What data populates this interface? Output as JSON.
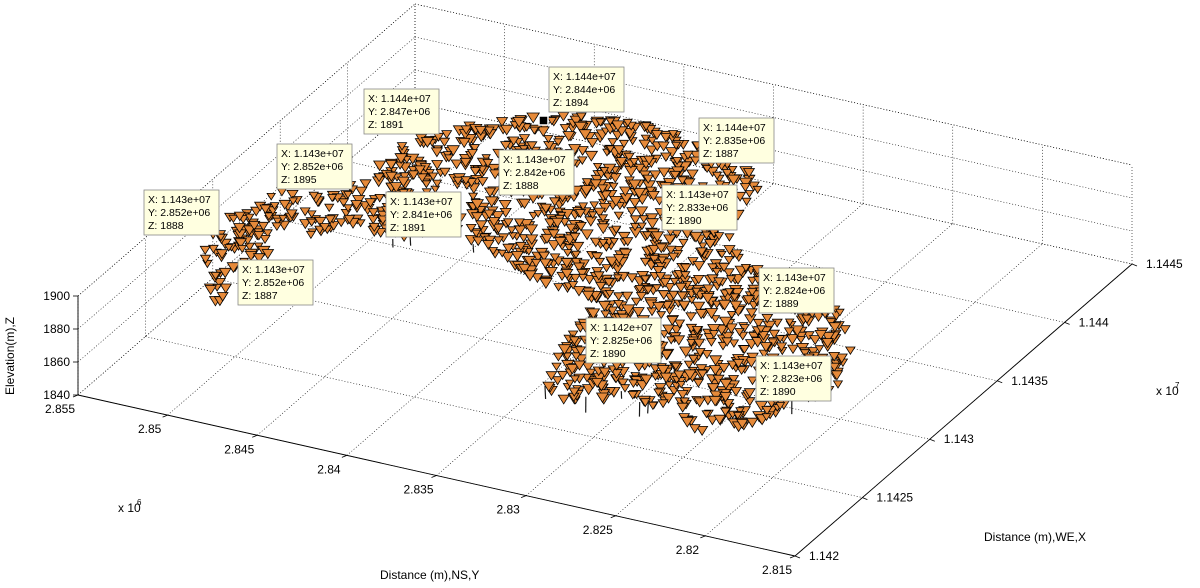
{
  "chart_data": {
    "type": "scatter",
    "projection": "3d",
    "marker": "downward-triangle",
    "marker_color": "#e68a3a",
    "marker_edge_color": "#000000",
    "grid": true,
    "xlabel": "Distance (m),WE,X",
    "ylabel": "Distance (m),NS,Y",
    "zlabel": "Elevation(m),Z",
    "x_ticks": [
      "1.142",
      "1.1425",
      "1.143",
      "1.1435",
      "1.144",
      "1.1445"
    ],
    "x_exponent": "x 10",
    "x_exponent_power": "7",
    "y_ticks": [
      "2.855",
      "2.85",
      "2.845",
      "2.84",
      "2.835",
      "2.83",
      "2.825",
      "2.82",
      "2.815"
    ],
    "y_exponent": "x 10",
    "y_exponent_power": "6",
    "z_ticks": [
      "1840",
      "1860",
      "1880",
      "1900"
    ],
    "xlim": [
      11420000,
      11445000
    ],
    "ylim": [
      2815000,
      2855000
    ],
    "zlim": [
      1840,
      1900
    ],
    "datatips": [
      {
        "x": "X: 1.143e+07",
        "y": "Y: 2.852e+06",
        "z": "Z: 1888"
      },
      {
        "x": "X: 1.143e+07",
        "y": "Y: 2.852e+06",
        "z": "Z: 1895"
      },
      {
        "x": "X: 1.144e+07",
        "y": "Y: 2.847e+06",
        "z": "Z: 1891"
      },
      {
        "x": "X: 1.144e+07",
        "y": "Y: 2.844e+06",
        "z": "Z: 1894"
      },
      {
        "x": "X: 1.144e+07",
        "y": "Y: 2.835e+06",
        "z": "Z: 1887"
      },
      {
        "x": "X: 1.143e+07",
        "y": "Y: 2.842e+06",
        "z": "Z: 1888"
      },
      {
        "x": "X: 1.143e+07",
        "y": "Y: 2.841e+06",
        "z": "Z: 1891"
      },
      {
        "x": "X: 1.143e+07",
        "y": "Y: 2.833e+06",
        "z": "Z: 1890"
      },
      {
        "x": "X: 1.143e+07",
        "y": "Y: 2.852e+06",
        "z": "Z: 1887"
      },
      {
        "x": "X: 1.143e+07",
        "y": "Y: 2.824e+06",
        "z": "Z: 1889"
      },
      {
        "x": "X: 1.142e+07",
        "y": "Y: 2.825e+06",
        "z": "Z: 1890"
      },
      {
        "x": "X: 1.143e+07",
        "y": "Y: 2.823e+06",
        "z": "Z: 1890"
      }
    ]
  }
}
